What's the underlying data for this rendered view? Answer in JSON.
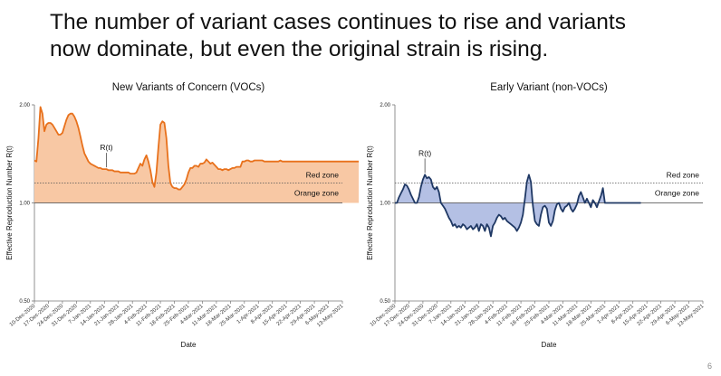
{
  "headline": {
    "line1": "The number of variant cases continues to rise and variants",
    "line2": "now dominate, but even the original strain is rising."
  },
  "page_number": "6",
  "colors": {
    "voc_line": "#e8711c",
    "voc_fill": "#f8c8a4",
    "nonvoc_line": "#1f3864",
    "nonvoc_fill": "#b4c0e4"
  },
  "chart_data": [
    {
      "type": "area",
      "title": "New Variants of Concern (VOCs)",
      "xlabel": "Date",
      "ylabel": "Effective Reproduction Number R(t)",
      "x_ticks": [
        "10-Dec-2020",
        "17-Dec-2020",
        "24-Dec-2020",
        "31-Dec-2020",
        "7-Jan-2021",
        "14-Jan-2021",
        "21-Jan-2021",
        "28-Jan-2021",
        "4-Feb-2021",
        "11-Feb-2021",
        "18-Feb-2021",
        "25-Feb-2021",
        "4-Mar-2021",
        "11-Mar-2021",
        "18-Mar-2021",
        "25-Mar-2021",
        "1-Apr-2021",
        "8-Apr-2021",
        "15-Apr-2021",
        "22-Apr-2021",
        "29-Apr-2021",
        "6-May-2021",
        "13-May-2021"
      ],
      "y_ticks": [
        "0.50",
        "1.00",
        "2.00"
      ],
      "ylim": [
        0.5,
        2.0
      ],
      "y_scale": "log",
      "reference_lines": [
        {
          "value": 1.0,
          "style": "solid"
        },
        {
          "value": 1.15,
          "style": "dotted",
          "label": "Red zone"
        }
      ],
      "zone_labels": [
        "Red zone",
        "Orange zone"
      ],
      "annotation": "R(t)",
      "series": [
        {
          "x_day_index": [
            0,
            1,
            2,
            3,
            4,
            5,
            6,
            7,
            8,
            9,
            10,
            11,
            12,
            13,
            14,
            15,
            16,
            17,
            18,
            19,
            20,
            21,
            22,
            23,
            24,
            25,
            26,
            27,
            28,
            29,
            30,
            31,
            32,
            33,
            34,
            35,
            36,
            37,
            38,
            39,
            40,
            41,
            42,
            43,
            44,
            45,
            46,
            47,
            48,
            49,
            50,
            51,
            52,
            53,
            54,
            55,
            56,
            57,
            58,
            59,
            60,
            61,
            62,
            63,
            64,
            65,
            66,
            67,
            68,
            69,
            70,
            71,
            72,
            73,
            74,
            75,
            76,
            77,
            78,
            79,
            80,
            81,
            82,
            83,
            84,
            85,
            86,
            87,
            88,
            89,
            90,
            91,
            92,
            93,
            94,
            95,
            96,
            97,
            98,
            99,
            100,
            101,
            102,
            103,
            104,
            105,
            106,
            107,
            108,
            109,
            110,
            111,
            112,
            113,
            114,
            115,
            116,
            117,
            118,
            119,
            120,
            121,
            122,
            123,
            124,
            125,
            126,
            127,
            128,
            129,
            130,
            131,
            132,
            133,
            134,
            135,
            136,
            137,
            138,
            139,
            140,
            141,
            142,
            143,
            144,
            145,
            146,
            147,
            148,
            149,
            150,
            151,
            152,
            153,
            154,
            155,
            156,
            157,
            158,
            159,
            160,
            161,
            162,
            163,
            164,
            165,
            166,
            167,
            168,
            169,
            170,
            171,
            172,
            173,
            174,
            175,
            176,
            177,
            178,
            179,
            180,
            181,
            182,
            183,
            184,
            185,
            186,
            187,
            188,
            189,
            190,
            191,
            192,
            193,
            194,
            195,
            196,
            197,
            198,
            199,
            200,
            201,
            202,
            203,
            204,
            205,
            206,
            207,
            208,
            209,
            210,
            211,
            212,
            213,
            214,
            215,
            216,
            217,
            218,
            219,
            220,
            221,
            222,
            223,
            224,
            225,
            226,
            227,
            228,
            229,
            230,
            231,
            232,
            233,
            234,
            235,
            236,
            237,
            238,
            239,
            240,
            241,
            242,
            243,
            244,
            245,
            246,
            247,
            248
          ],
          "values": [
            1.35,
            1.34,
            1.58,
            1.97,
            1.88,
            1.66,
            1.74,
            1.76,
            1.76,
            1.74,
            1.7,
            1.66,
            1.62,
            1.62,
            1.64,
            1.72,
            1.8,
            1.86,
            1.88,
            1.88,
            1.84,
            1.78,
            1.7,
            1.6,
            1.5,
            1.42,
            1.38,
            1.34,
            1.32,
            1.31,
            1.3,
            1.29,
            1.28,
            1.28,
            1.27,
            1.27,
            1.27,
            1.26,
            1.26,
            1.26,
            1.25,
            1.25,
            1.25,
            1.24,
            1.24,
            1.24,
            1.24,
            1.24,
            1.23,
            1.23,
            1.23,
            1.24,
            1.28,
            1.32,
            1.3,
            1.36,
            1.4,
            1.34,
            1.26,
            1.16,
            1.12,
            1.24,
            1.48,
            1.74,
            1.78,
            1.76,
            1.58,
            1.3,
            1.15,
            1.12,
            1.11,
            1.11,
            1.1,
            1.1,
            1.12,
            1.14,
            1.18,
            1.24,
            1.28,
            1.28,
            1.3,
            1.3,
            1.29,
            1.32,
            1.32,
            1.33,
            1.36,
            1.34,
            1.32,
            1.33,
            1.31,
            1.29,
            1.27,
            1.27,
            1.26,
            1.27,
            1.27,
            1.26,
            1.27,
            1.28,
            1.28,
            1.29,
            1.29,
            1.29,
            1.34,
            1.34,
            1.35,
            1.35,
            1.34,
            1.34,
            1.35,
            1.35,
            1.35,
            1.35,
            1.35,
            1.34,
            1.34,
            1.34,
            1.34,
            1.34,
            1.34,
            1.34,
            1.34,
            1.35,
            1.34,
            1.34,
            1.34,
            1.34,
            1.34,
            1.34,
            1.34,
            1.34,
            1.34,
            1.34,
            1.34,
            1.34,
            1.34,
            1.34,
            1.34,
            1.34,
            1.34,
            1.34,
            1.34,
            1.34,
            1.34,
            1.34,
            1.34,
            1.34,
            1.34,
            1.34,
            1.34,
            1.34,
            1.34,
            1.34,
            1.34,
            1.34,
            1.34,
            1.34,
            1.34,
            1.34,
            1.34,
            1.34,
            1.34,
            1.34,
            1.34,
            1.34,
            1.34,
            1.34,
            1.34,
            1.34,
            1.34,
            1.34,
            1.34,
            1.34,
            1.34,
            1.34,
            1.34,
            1.34,
            1.34,
            1.34,
            1.34,
            1.34,
            1.34,
            1.34,
            1.34,
            1.34,
            1.34,
            1.34,
            1.34,
            1.34,
            1.34,
            1.34,
            1.34,
            1.34,
            1.34,
            1.34,
            1.34,
            1.34,
            1.34,
            1.34,
            1.34,
            1.34,
            1.34,
            1.34,
            1.34,
            1.34,
            1.34,
            1.34,
            1.34,
            1.34,
            1.34,
            1.34,
            1.34,
            1.34,
            1.34,
            1.34,
            1.34,
            1.34,
            1.34,
            1.34,
            1.34,
            1.34,
            1.34,
            1.34,
            1.34,
            1.34,
            1.34,
            1.34,
            1.34,
            1.34,
            1.34,
            1.34,
            1.34,
            1.34,
            1.34,
            1.34,
            1.34,
            1.34,
            1.34,
            1.34,
            1.34,
            1.34,
            1.34,
            1.34,
            1.34,
            1.34,
            1.34,
            1.34,
            1.34,
            1.34,
            1.34,
            1.34,
            1.34,
            1.34,
            1.34,
            1.34,
            1.34,
            1.34,
            1.34,
            1.34,
            1.34,
            1.34,
            1.34
          ]
        }
      ]
    },
    {
      "type": "area",
      "title": "Early Variant (non-VOCs)",
      "xlabel": "Date",
      "ylabel": "Effective Reproduction Number R(t)",
      "x_ticks": [
        "10-Dec-2020",
        "17-Dec-2020",
        "24-Dec-2020",
        "31-Dec-2020",
        "7-Jan-2021",
        "14-Jan-2021",
        "21-Jan-2021",
        "28-Jan-2021",
        "4-Feb-2021",
        "11-Feb-2021",
        "18-Feb-2021",
        "25-Feb-2021",
        "4-Mar-2021",
        "11-Mar-2021",
        "18-Mar-2021",
        "25-Mar-2021",
        "1-Apr-2021",
        "8-Apr-2021",
        "15-Apr-2021",
        "22-Apr-2021",
        "29-Apr-2021",
        "6-May-2021",
        "13-May-2021"
      ],
      "y_ticks": [
        "0.50",
        "1.00",
        "2.00"
      ],
      "ylim": [
        0.5,
        2.0
      ],
      "y_scale": "log",
      "reference_lines": [
        {
          "value": 1.0,
          "style": "solid"
        },
        {
          "value": 1.15,
          "style": "dotted",
          "label": "Red zone"
        }
      ],
      "zone_labels": [
        "Red zone",
        "Orange zone"
      ],
      "annotation": "R(t)",
      "series": [
        {
          "x_day_index": [
            0,
            1,
            2,
            3,
            4,
            5,
            6,
            7,
            8,
            9,
            10,
            11,
            12,
            13,
            14,
            15,
            16,
            17,
            18,
            19,
            20,
            21,
            22,
            23,
            24,
            25,
            26,
            27,
            28,
            29,
            30,
            31,
            32,
            33,
            34,
            35,
            36,
            37,
            38,
            39,
            40,
            41,
            42,
            43,
            44,
            45,
            46,
            47,
            48,
            49,
            50,
            51,
            52,
            53,
            54,
            55,
            56,
            57,
            58,
            59,
            60,
            61,
            62,
            63,
            64,
            65,
            66,
            67,
            68,
            69,
            70,
            71,
            72,
            73,
            74,
            75,
            76,
            77,
            78,
            79,
            80,
            81,
            82,
            83,
            84,
            85,
            86,
            87,
            88,
            89,
            90,
            91,
            92,
            93,
            94,
            95,
            96,
            97,
            98,
            99,
            100,
            101,
            102,
            103,
            104,
            105,
            106,
            107,
            108,
            109,
            110,
            111,
            112,
            113,
            114,
            115,
            116,
            117,
            118,
            119,
            120,
            121,
            122,
            123
          ],
          "values": [
            1.0,
            1.0,
            1.04,
            1.07,
            1.1,
            1.14,
            1.13,
            1.1,
            1.06,
            1.03,
            1.0,
            1.0,
            1.04,
            1.12,
            1.18,
            1.22,
            1.19,
            1.2,
            1.18,
            1.12,
            1.1,
            1.12,
            1.08,
            1.0,
            0.98,
            0.96,
            0.93,
            0.9,
            0.88,
            0.85,
            0.86,
            0.84,
            0.85,
            0.84,
            0.86,
            0.85,
            0.83,
            0.84,
            0.85,
            0.83,
            0.84,
            0.86,
            0.82,
            0.86,
            0.85,
            0.82,
            0.86,
            0.84,
            0.79,
            0.85,
            0.87,
            0.9,
            0.92,
            0.91,
            0.89,
            0.9,
            0.88,
            0.87,
            0.86,
            0.85,
            0.84,
            0.82,
            0.84,
            0.87,
            0.92,
            1.03,
            1.16,
            1.22,
            1.16,
            0.98,
            0.88,
            0.86,
            0.85,
            0.92,
            0.97,
            0.98,
            0.96,
            0.87,
            0.85,
            0.88,
            0.95,
            0.99,
            1.0,
            0.96,
            0.94,
            0.97,
            0.98,
            1.0,
            0.96,
            0.94,
            0.96,
            0.99,
            1.05,
            1.08,
            1.04,
            1.0,
            1.03,
            1.0,
            0.97,
            1.02,
            1.0,
            0.97,
            1.01,
            1.05,
            1.11,
            1.0,
            1.0,
            1.0,
            1.0,
            1.0,
            1.0,
            1.0,
            1.0,
            1.0,
            1.0,
            1.0,
            1.0,
            1.0,
            1.0,
            1.0,
            1.0,
            1.0,
            1.0,
            1.0
          ]
        }
      ]
    }
  ]
}
